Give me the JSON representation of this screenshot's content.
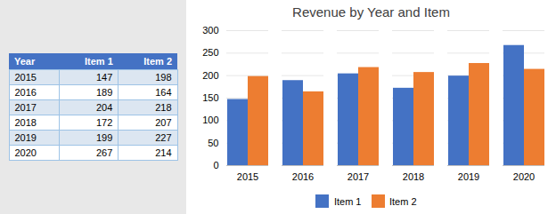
{
  "chart_data": [
    {
      "type": "table",
      "xlabel": "Year",
      "categories": [
        "2015",
        "2016",
        "2017",
        "2018",
        "2019",
        "2020"
      ],
      "series": [
        {
          "name": "Item 1",
          "values": [
            147,
            189,
            204,
            172,
            199,
            267
          ]
        },
        {
          "name": "Item 2",
          "values": [
            198,
            164,
            218,
            207,
            227,
            214
          ]
        }
      ]
    },
    {
      "type": "bar",
      "title": "Revenue by Year and Item",
      "categories": [
        "2015",
        "2016",
        "2017",
        "2018",
        "2019",
        "2020"
      ],
      "series": [
        {
          "name": "Item 1",
          "color": "#4472C4",
          "values": [
            147,
            189,
            204,
            172,
            199,
            267
          ]
        },
        {
          "name": "Item 2",
          "color": "#ED7D31",
          "values": [
            198,
            164,
            218,
            207,
            227,
            214
          ]
        }
      ],
      "ylim": [
        0,
        300
      ],
      "yticks": [
        0,
        50,
        100,
        150,
        200,
        250,
        300
      ],
      "grid": true,
      "legend": "bottom"
    }
  ]
}
